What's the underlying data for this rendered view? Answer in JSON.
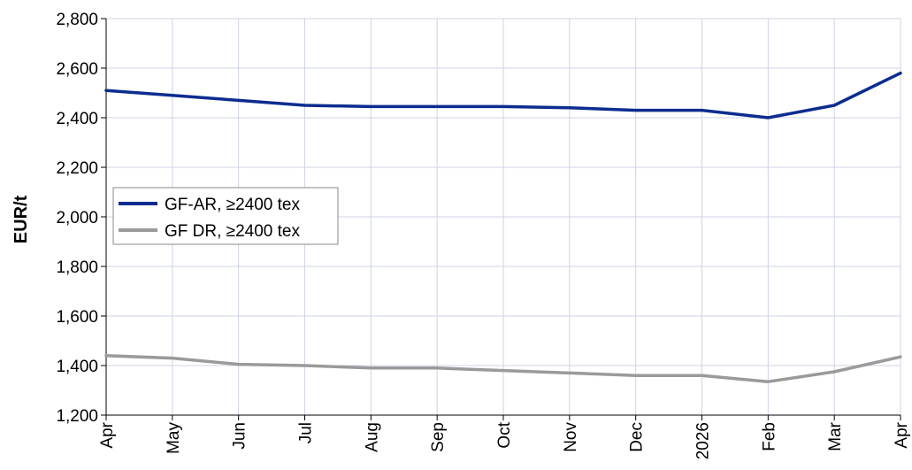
{
  "chart_data": {
    "type": "line",
    "title": "",
    "xlabel": "",
    "ylabel": "EUR/t",
    "categories": [
      "Apr",
      "May",
      "Jun",
      "Jul",
      "Aug",
      "Sep",
      "Oct",
      "Nov",
      "Dec",
      "2026",
      "Feb",
      "Mar",
      "Apr"
    ],
    "ylim": [
      1200,
      2800
    ],
    "yticks": [
      1200,
      1400,
      1600,
      1800,
      2000,
      2200,
      2400,
      2600,
      2800
    ],
    "ytick_labels": [
      "1,200",
      "1,400",
      "1,600",
      "1,800",
      "2,000",
      "2,200",
      "2,400",
      "2,600",
      "2,800"
    ],
    "grid": true,
    "legend_position": "middle-left",
    "series": [
      {
        "name": "GF-AR, ≥2400 tex",
        "color": "#0d2c8f",
        "values": [
          2510,
          2490,
          2470,
          2450,
          2445,
          2445,
          2445,
          2440,
          2430,
          2430,
          2400,
          2450,
          2580
        ]
      },
      {
        "name": "GF DR, ≥2400 tex",
        "color": "#9a9a9a",
        "values": [
          1440,
          1430,
          1405,
          1400,
          1390,
          1390,
          1380,
          1370,
          1360,
          1360,
          1335,
          1375,
          1435
        ]
      }
    ]
  }
}
